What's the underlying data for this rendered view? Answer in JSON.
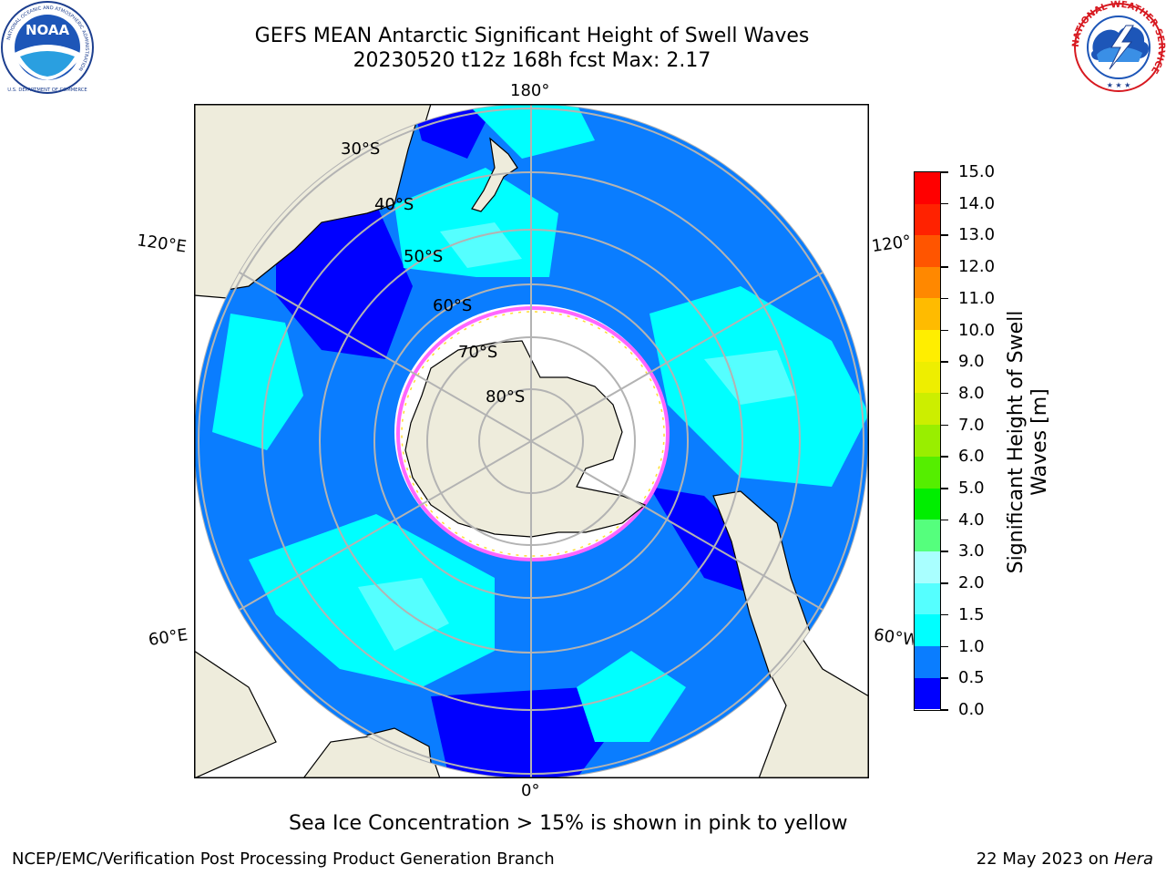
{
  "header": {
    "title_line1": "GEFS MEAN Antarctic Significant Height of Swell Waves",
    "title_line2": "20230520 t12z 168h fcst   Max: 2.17"
  },
  "logos": {
    "noaa_text": "NOAA",
    "noaa_ring_text": "NATIONAL OCEANIC AND ATMOSPHERIC ADMINISTRATION",
    "noaa_bottom_text": "U.S. DEPARTMENT OF COMMERCE",
    "nws_ring_text": "NATIONAL WEATHER SERVICE"
  },
  "map": {
    "projection": "south-polar-stereographic",
    "longitude_labels": {
      "top": "180°",
      "bottom": "0°",
      "left_upper": "120°E",
      "left_lower": "60°E",
      "right_upper": "120°",
      "right_lower": "60°W"
    },
    "latitude_labels": [
      "30°S",
      "40°S",
      "50°S",
      "60°S",
      "70°S",
      "80°S"
    ],
    "colors": {
      "land": "#eeecdc",
      "sea_ice_edge_pink": "#ff66ff",
      "sea_ice_edge_yellow": "#ffdd33",
      "gridline": "#b3b3b3",
      "coastline": "#000000"
    }
  },
  "colorbar": {
    "title": "Significant Height of Swell Waves [m]",
    "title_line1": "Significant Height of Swell",
    "title_line2": "Waves [m]",
    "min": 0.0,
    "max": 15.0,
    "tick_labels": [
      "0.0",
      "0.5",
      "1.0",
      "1.5",
      "2.0",
      "3.0",
      "4.0",
      "5.0",
      "6.0",
      "7.0",
      "8.0",
      "9.0",
      "10.0",
      "11.0",
      "12.0",
      "13.0",
      "14.0",
      "15.0"
    ],
    "segment_colors": [
      "#0000ff",
      "#0a7dff",
      "#00ffff",
      "#55ffff",
      "#a9ffff",
      "#55ff7d",
      "#00ee00",
      "#55ee00",
      "#99ee00",
      "#ccee00",
      "#eeee00",
      "#ffee00",
      "#ffbb00",
      "#ff8800",
      "#ff5500",
      "#ff2200",
      "#ff0000"
    ]
  },
  "caption": "Sea Ice Concentration > 15% is shown in pink to yellow",
  "footer": {
    "left": "NCEP/EMC/Verification Post Processing Product Generation Branch",
    "right_prefix": "22 May 2023 on ",
    "right_machine": "Hera"
  }
}
